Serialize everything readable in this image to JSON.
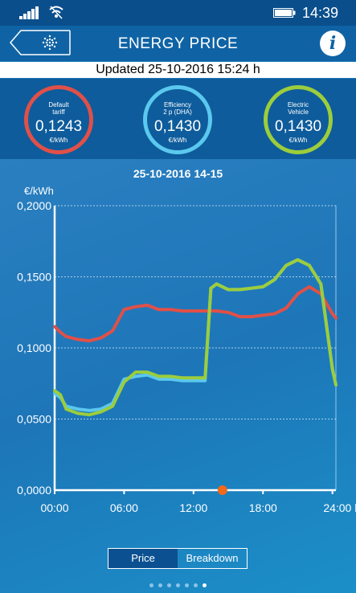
{
  "status_bar": {
    "time": "14:39"
  },
  "header": {
    "title": "ENERGY PRICE"
  },
  "updated": "Updated 25-10-2016 15:24 h",
  "tariffs": [
    {
      "name_lines": [
        "Default",
        "tariff"
      ],
      "value": "0,1243",
      "unit": "€/kWh",
      "color": "#e05048"
    },
    {
      "name_lines": [
        "Efficiency",
        "2 p (DHA)"
      ],
      "value": "0,1430",
      "unit": "€/kWh",
      "color": "#5bc8ee"
    },
    {
      "name_lines": [
        "Electric",
        "Vehicle"
      ],
      "value": "0,1430",
      "unit": "€/kWh",
      "color": "#9ccd3c"
    }
  ],
  "chart_title": "25-10-2016 14-15",
  "chart_data": {
    "type": "line",
    "ylabel": "€/kWh",
    "y_ticks": [
      "0,0000",
      "0,0500",
      "0,1000",
      "0,1500",
      "0,2000"
    ],
    "ylim": [
      0,
      0.2
    ],
    "x_ticks": [
      "00:00",
      "06:00",
      "12:00",
      "18:00",
      "24:00 h"
    ],
    "xlim": [
      0,
      24.3
    ],
    "grid": "horizontal dashed",
    "current_hour": 14.5,
    "x": [
      0,
      0.5,
      1,
      2,
      3,
      4,
      5,
      6,
      7,
      8,
      9,
      10,
      11,
      12,
      13,
      13.5,
      14,
      15,
      16,
      17,
      18,
      19,
      20,
      21,
      22,
      23,
      24,
      24.3
    ],
    "series": [
      {
        "color": "#e05048",
        "values": [
          0.115,
          0.111,
          0.108,
          0.106,
          0.105,
          0.107,
          0.112,
          0.127,
          0.129,
          0.13,
          0.127,
          0.127,
          0.126,
          0.126,
          0.126,
          0.126,
          0.126,
          0.125,
          0.122,
          0.122,
          0.123,
          0.124,
          0.128,
          0.138,
          0.143,
          0.138,
          0.124,
          0.121
        ]
      },
      {
        "color": "#5bc8ee",
        "values": [
          0.068,
          0.065,
          0.059,
          0.057,
          0.056,
          0.057,
          0.061,
          0.078,
          0.08,
          0.081,
          0.078,
          0.078,
          0.077,
          0.077,
          0.077,
          0.142,
          0.145,
          0.141,
          0.141,
          0.142,
          0.143,
          0.148,
          0.158,
          0.162,
          0.158,
          0.145,
          0.085,
          0.074
        ]
      },
      {
        "color": "#9ccd3c",
        "values": [
          0.07,
          0.067,
          0.057,
          0.054,
          0.053,
          0.055,
          0.059,
          0.076,
          0.083,
          0.083,
          0.08,
          0.08,
          0.079,
          0.079,
          0.079,
          0.142,
          0.145,
          0.141,
          0.141,
          0.142,
          0.143,
          0.148,
          0.158,
          0.162,
          0.158,
          0.145,
          0.085,
          0.074
        ]
      }
    ]
  },
  "tabs": {
    "price": "Price",
    "breakdown": "Breakdown"
  },
  "pager": {
    "count": 7,
    "active": 6
  }
}
